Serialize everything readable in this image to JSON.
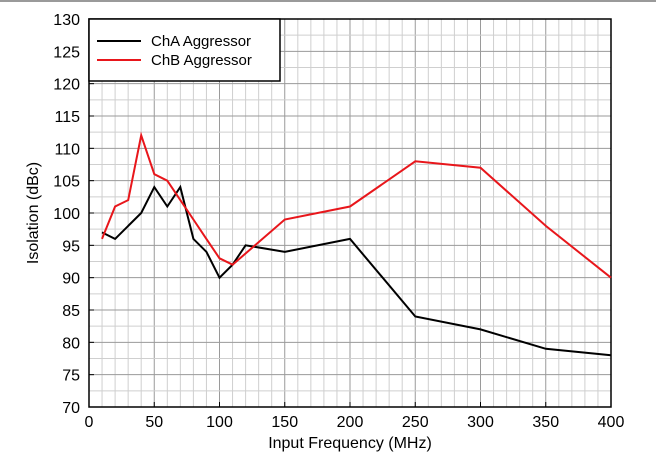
{
  "chart_data": {
    "type": "line",
    "title": "",
    "xlabel": "Input Frequency (MHz)",
    "ylabel": "Isolation (dBc)",
    "xlim": [
      0,
      400
    ],
    "ylim": [
      70,
      130
    ],
    "xticks": [
      "0",
      "50",
      "100",
      "150",
      "200",
      "250",
      "300",
      "350",
      "400"
    ],
    "yticks": [
      "70",
      "75",
      "80",
      "85",
      "90",
      "95",
      "100",
      "105",
      "110",
      "115",
      "120",
      "125",
      "130"
    ],
    "grid": true,
    "legend_position": "top-left",
    "series": [
      {
        "name": "ChA Aggressor",
        "color": "#000000",
        "x": [
          10,
          20,
          40,
          50,
          60,
          70,
          80,
          90,
          100,
          110,
          120,
          150,
          200,
          250,
          300,
          350,
          400
        ],
        "y": [
          97,
          96,
          100,
          104,
          101,
          104,
          96,
          94,
          90,
          92,
          95,
          94,
          96,
          84,
          82,
          79,
          78
        ]
      },
      {
        "name": "ChB Aggressor",
        "color": "#e8161b",
        "x": [
          10,
          20,
          30,
          40,
          50,
          60,
          70,
          80,
          90,
          100,
          110,
          150,
          200,
          250,
          300,
          350,
          400
        ],
        "y": [
          96,
          101,
          102,
          112,
          106,
          105,
          102,
          99,
          96,
          93,
          92,
          99,
          101,
          108,
          107,
          98,
          90
        ]
      }
    ]
  }
}
